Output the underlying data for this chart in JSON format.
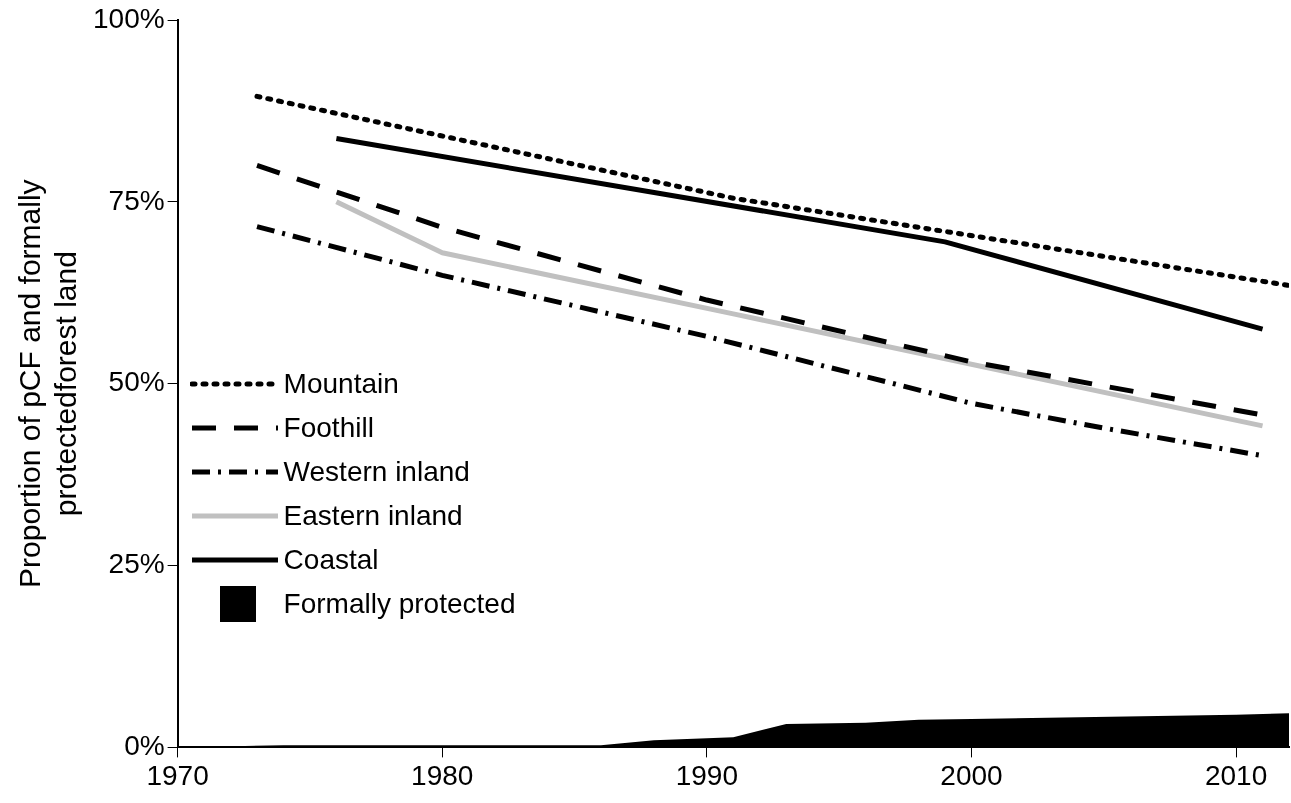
{
  "chart_data": {
    "type": "line",
    "ylabel": "Proportion of pCF and formally\nprotectedforest land",
    "xlim": [
      1970,
      2012
    ],
    "xticks": [
      1970,
      1980,
      1990,
      2000,
      2010
    ],
    "ylim": [
      0,
      100
    ],
    "yticks": [
      {
        "value": 0,
        "label": "0%"
      },
      {
        "value": 25,
        "label": "25%"
      },
      {
        "value": 50,
        "label": "50%"
      },
      {
        "value": 75,
        "label": "75%"
      },
      {
        "value": 100,
        "label": "100%"
      }
    ],
    "grid": false,
    "legend": "left",
    "marker": "none",
    "series": [
      {
        "name": "Mountain",
        "color": "#000000",
        "line_style": "dotted",
        "x": [
          1973,
          1991,
          2012
        ],
        "values": [
          89.5,
          75.5,
          63.5
        ]
      },
      {
        "name": "Foothill",
        "color": "#000000",
        "line_style": "dashed",
        "x": [
          1973,
          1980,
          1990,
          2000,
          2011
        ],
        "values": [
          80,
          71.5,
          61.5,
          53,
          45.7
        ]
      },
      {
        "name": "Western inland",
        "color": "#000000",
        "line_style": "dashdot",
        "x": [
          1973,
          1980,
          1990,
          2000,
          2005,
          2011
        ],
        "values": [
          71.6,
          64.9,
          56.5,
          47.3,
          43.9,
          40.1
        ]
      },
      {
        "name": "Eastern inland",
        "color": "#c0c0c0",
        "line_style": "solid",
        "x": [
          1976,
          1980,
          1991,
          2011
        ],
        "values": [
          75,
          68,
          59.6,
          44.2
        ]
      },
      {
        "name": "Coastal",
        "color": "#000000",
        "line_style": "solid",
        "x": [
          1976,
          1999,
          2011
        ],
        "values": [
          83.7,
          69.5,
          57.5
        ]
      },
      {
        "name": "Formally protected",
        "type": "area",
        "color": "#000000",
        "x": [
          1970,
          1974,
          1986,
          1988,
          1991,
          1993,
          1996,
          1998,
          2000,
          2010,
          2012
        ],
        "values": [
          0,
          0.3,
          0.3,
          1,
          1.4,
          3.2,
          3.4,
          3.8,
          3.9,
          4.5,
          4.7
        ]
      }
    ]
  }
}
